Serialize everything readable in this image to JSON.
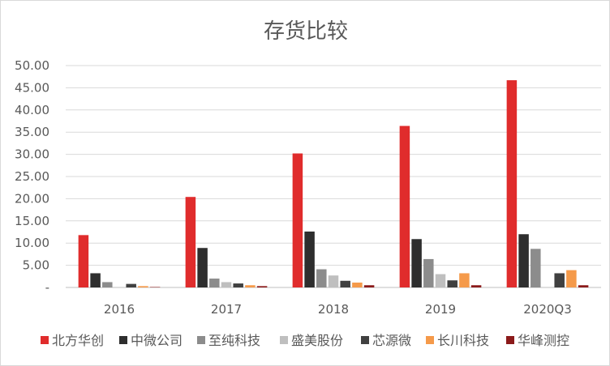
{
  "chart_data": {
    "type": "bar",
    "title": "存货比较",
    "xlabel": "",
    "ylabel": "",
    "ylim": [
      0,
      50
    ],
    "yticks": [
      "-",
      "5.00",
      "10.00",
      "15.00",
      "20.00",
      "25.00",
      "30.00",
      "35.00",
      "40.00",
      "45.00",
      "50.00"
    ],
    "grid": true,
    "legend_position": "bottom",
    "categories": [
      "2016",
      "2017",
      "2018",
      "2019",
      "2020Q3"
    ],
    "series": [
      {
        "name": "北方华创",
        "color": "#e02c2c",
        "values": [
          11.8,
          20.4,
          30.2,
          36.4,
          46.7
        ]
      },
      {
        "name": "中微公司",
        "color": "#2e2e2e",
        "values": [
          3.2,
          8.9,
          12.6,
          10.9,
          12.0
        ]
      },
      {
        "name": "至纯科技",
        "color": "#8c8c8c",
        "values": [
          1.2,
          2.0,
          4.1,
          6.4,
          8.7
        ]
      },
      {
        "name": "盛美股份",
        "color": "#bfbfbf",
        "values": [
          0,
          1.2,
          2.7,
          3.0,
          0
        ]
      },
      {
        "name": "芯源微",
        "color": "#404040",
        "values": [
          0.8,
          0.9,
          1.5,
          1.6,
          3.2
        ]
      },
      {
        "name": "长川科技",
        "color": "#f59a4a",
        "values": [
          0.3,
          0.5,
          1.1,
          3.2,
          3.9
        ]
      },
      {
        "name": "华峰测控",
        "color": "#8b1a1a",
        "values": [
          0.1,
          0.3,
          0.5,
          0.5,
          0.5
        ]
      }
    ]
  }
}
